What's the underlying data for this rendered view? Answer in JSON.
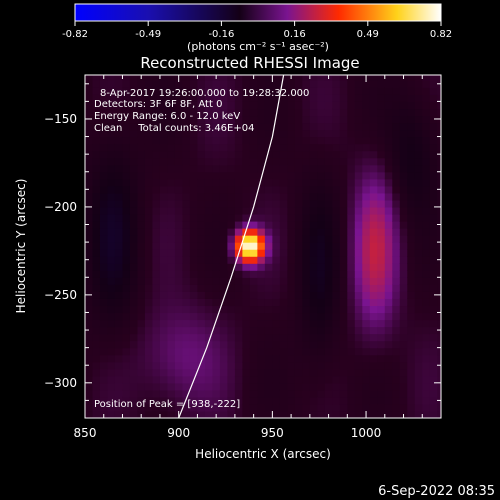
{
  "colorbar": {
    "min": -0.82,
    "max": 0.82,
    "tick_labels": [
      "-0.82",
      "-0.49",
      "-0.16",
      "0.16",
      "0.49",
      "0.82"
    ],
    "unit_label": "(photons cm⁻² s⁻¹ asec⁻²)",
    "colors": [
      "#0000ff",
      "#140016",
      "#7a1490",
      "#ff2a00",
      "#ffd21a",
      "#ffffff"
    ]
  },
  "chart_data": {
    "type": "heatmap",
    "title": "Reconstructed RHESSI Image",
    "xlabel": "Heliocentric X (arcsec)",
    "ylabel": "Heliocentric Y (arcsec)",
    "xlim": [
      850,
      1040
    ],
    "ylim": [
      -320,
      -125
    ],
    "x_ticks": [
      850,
      900,
      950,
      1000
    ],
    "y_ticks": [
      -300,
      -250,
      -200,
      -150
    ],
    "annotations": [
      "8-Apr-2017 19:26:00.000 to 19:28:32.000",
      "Detectors: 3F 6F 8F, Att 0",
      "Energy Range: 6.0 - 12.0 keV",
      "Clean     Total counts: 3.46E+04"
    ],
    "peak_label": "Position of Peak = [938,-222]",
    "peak": {
      "x": 938,
      "y": -222,
      "value": 0.82
    },
    "sources": [
      {
        "x": 938,
        "y": -222,
        "sx": 5,
        "sy": 6,
        "amp": 0.82
      },
      {
        "x": 1005,
        "y": -225,
        "sx": 8,
        "sy": 30,
        "amp": 0.22
      },
      {
        "x": 865,
        "y": -215,
        "sx": 10,
        "sy": 40,
        "amp": -0.12
      },
      {
        "x": 975,
        "y": -240,
        "sx": 8,
        "sy": 40,
        "amp": -0.1
      },
      {
        "x": 900,
        "y": -285,
        "sx": 15,
        "sy": 20,
        "amp": 0.1
      },
      {
        "x": 1025,
        "y": -170,
        "sx": 10,
        "sy": 25,
        "amp": -0.1
      }
    ],
    "limb_curve": {
      "x": [
        900,
        915,
        928,
        940,
        950,
        956
      ],
      "y": [
        -320,
        -280,
        -240,
        -200,
        -160,
        -125
      ]
    }
  },
  "footer": {
    "timestamp": "6-Sep-2022 08:35"
  }
}
